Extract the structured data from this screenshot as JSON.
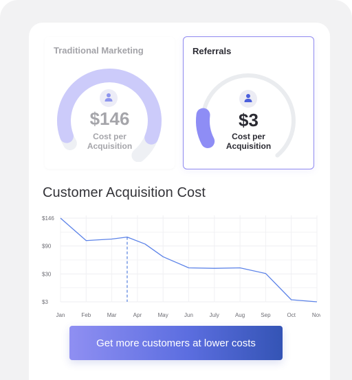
{
  "cards": {
    "traditional": {
      "title": "Traditional Marketing",
      "price": "$146",
      "cost_line1": "Cost per",
      "cost_line2": "Acquisition",
      "gauge_fill": 1.0
    },
    "referrals": {
      "title": "Referrals",
      "price": "$3",
      "cost_line1": "Cost per",
      "cost_line2": "Acquisition",
      "gauge_fill": 0.12
    }
  },
  "chart_title": "Customer Acquisition Cost",
  "chart_data": {
    "type": "line",
    "title": "Customer Acquisition Cost",
    "categories": [
      "Jan",
      "Feb",
      "Mar",
      "Apr",
      "May",
      "Jun",
      "July",
      "Aug",
      "Sep",
      "Oct",
      "Nov"
    ],
    "y_ticks": [
      "$146",
      "$90",
      "$30",
      "$3"
    ],
    "y_tick_values": [
      146,
      90,
      30,
      3
    ],
    "ylim": [
      3,
      146
    ],
    "grid": true,
    "series": [
      {
        "points": [
          [
            1,
            146
          ],
          [
            2,
            101
          ],
          [
            3,
            104
          ],
          [
            3.6,
            108
          ],
          [
            4.3,
            94
          ],
          [
            5,
            67
          ],
          [
            6,
            43
          ],
          [
            7,
            42
          ],
          [
            8,
            43
          ],
          [
            9,
            31
          ],
          [
            10,
            5
          ],
          [
            11,
            3
          ]
        ]
      }
    ],
    "marker_x": 3.6
  },
  "cta": {
    "label": "Get more customers at lower costs"
  },
  "colors": {
    "gauge_light": "#cccbfa",
    "gauge_track": "#eaecef",
    "gauge_active": "#8e8df5",
    "line": "#5b82e8",
    "avatar_icon": "#5b6fe2"
  }
}
